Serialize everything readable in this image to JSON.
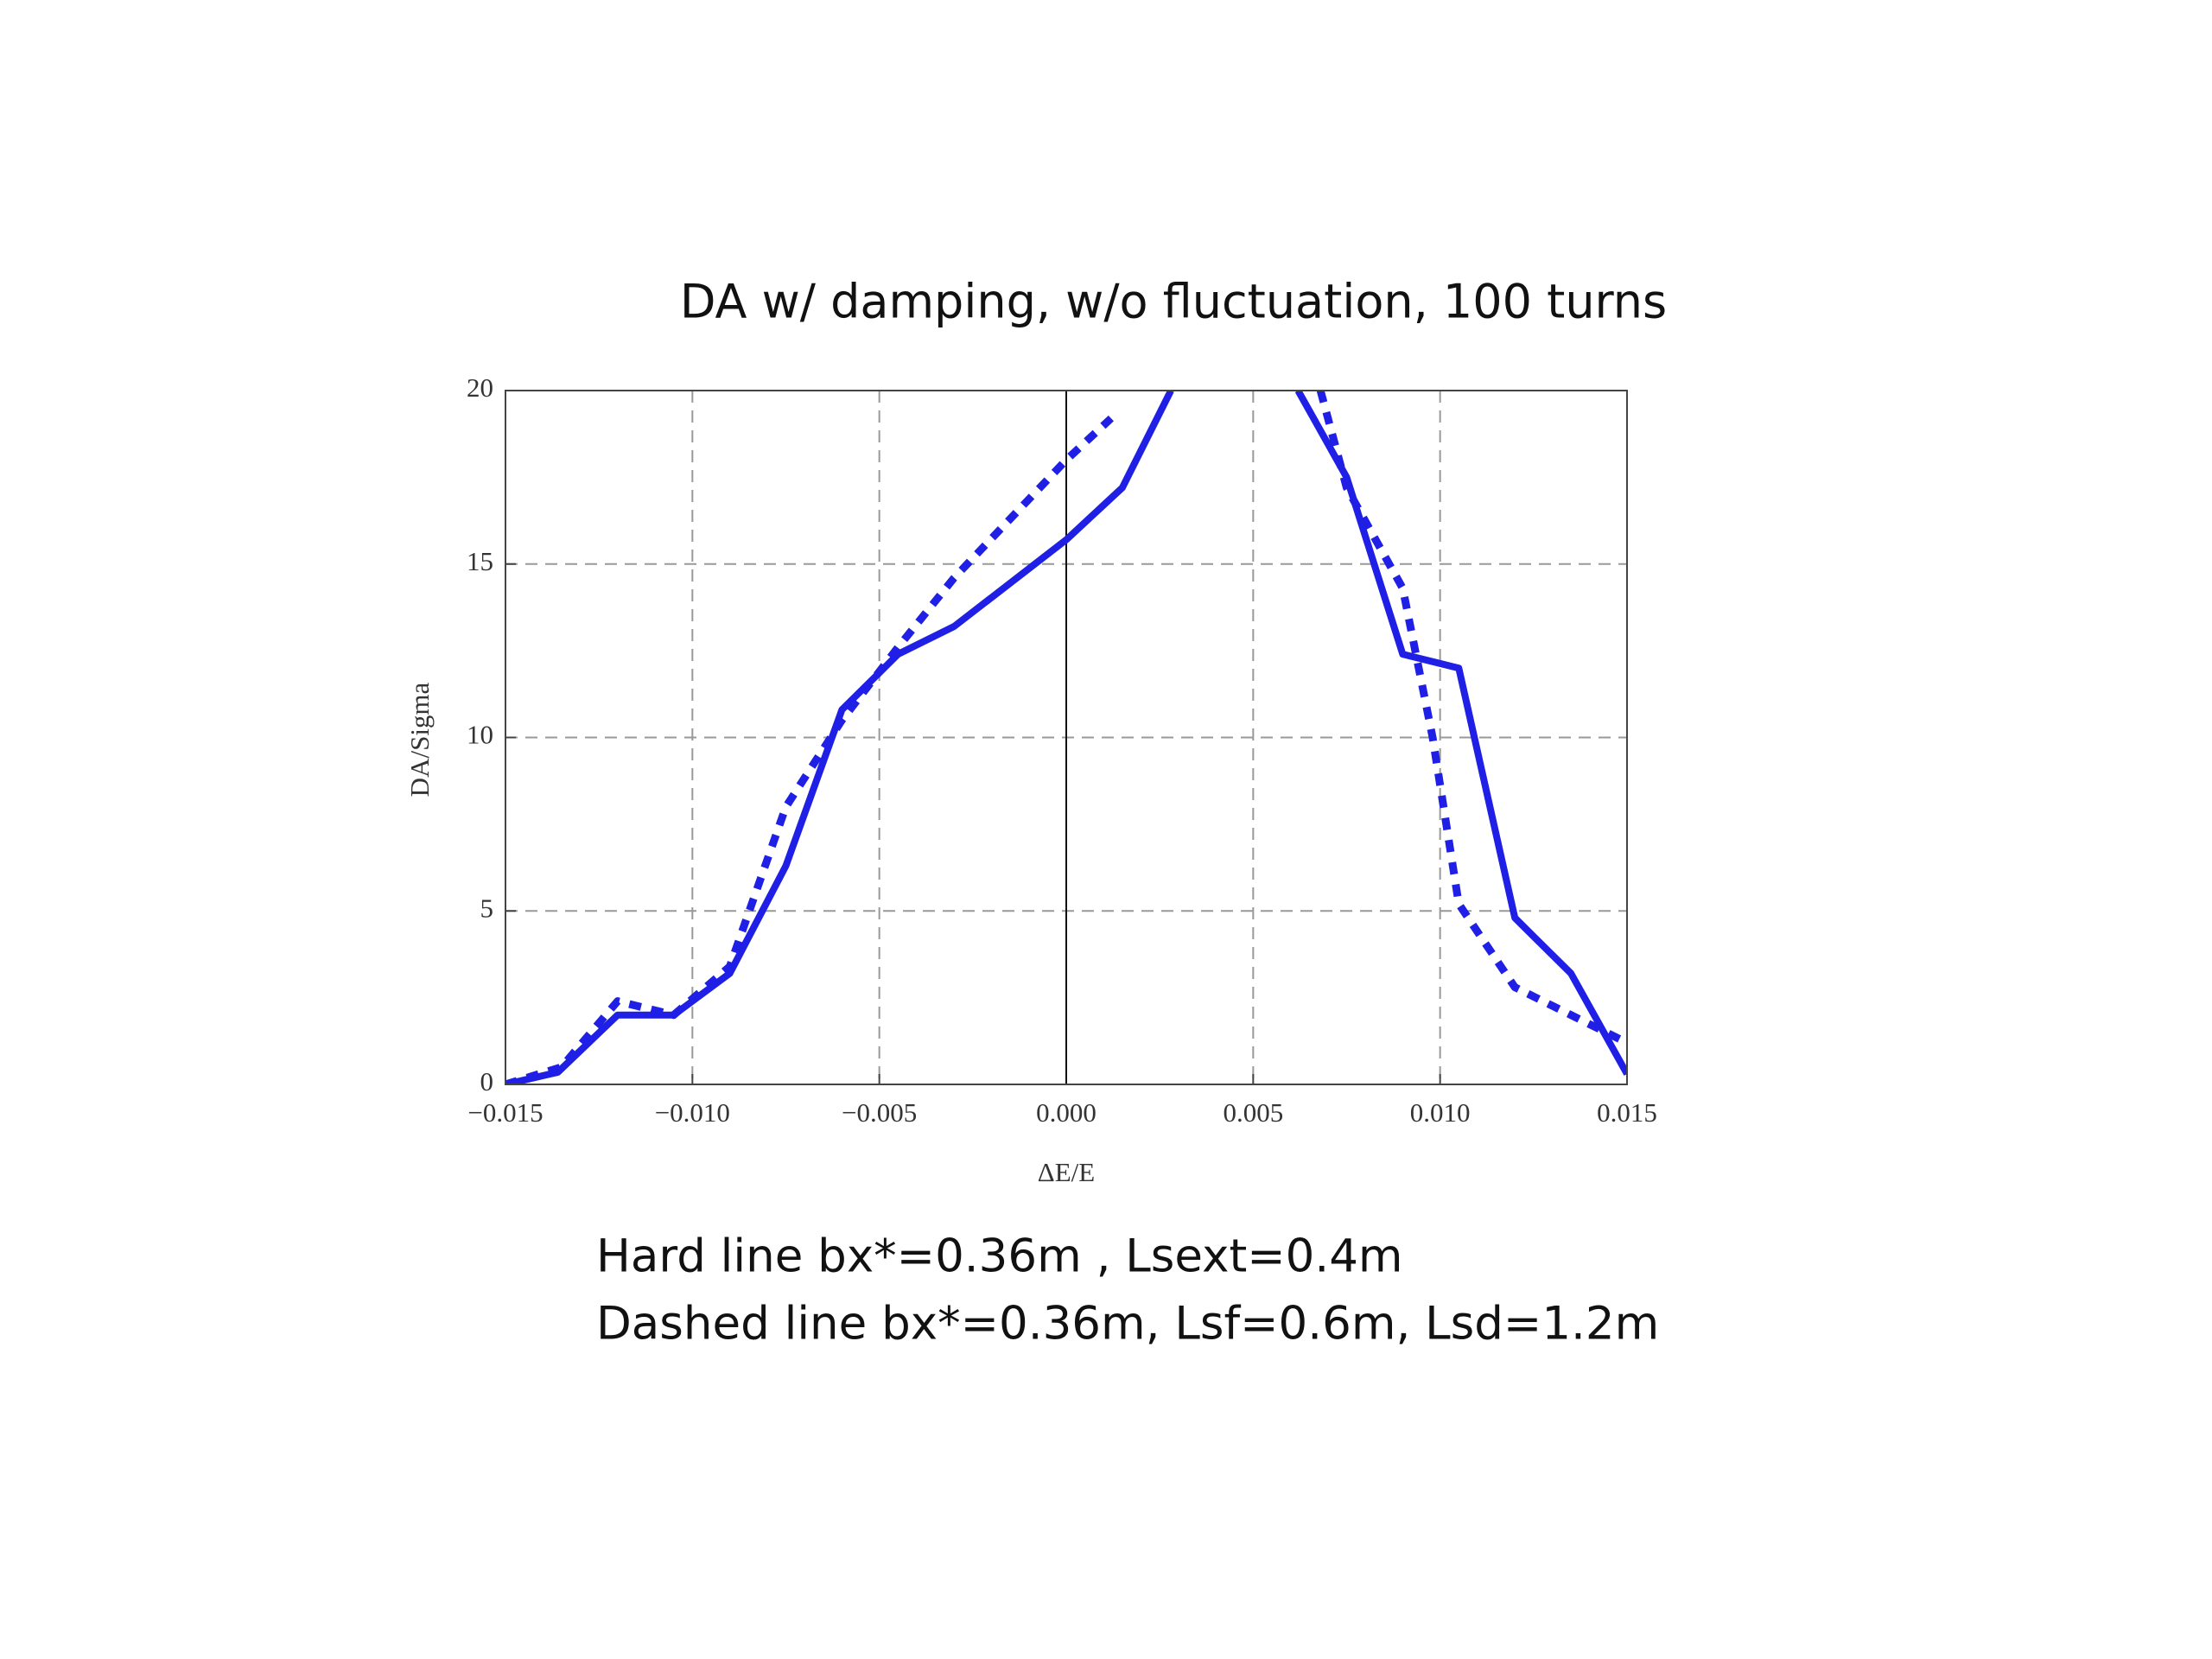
{
  "chart_data": {
    "type": "line",
    "title": "DA w/ damping, w/o fluctuation, 100 turns",
    "x_label": "ΔE/E",
    "y_label": "DA/Sigma",
    "annotations": [
      "Hard line bx*=0.36m , Lsext=0.4m",
      "Dashed line bx*=0.36m, Lsf=0.6m, Lsd=1.2m"
    ],
    "xlim": [
      -0.015,
      0.015
    ],
    "ylim": [
      0,
      20
    ],
    "xticks": [
      {
        "value": -0.015,
        "label": "−0.015"
      },
      {
        "value": -0.01,
        "label": "−0.010"
      },
      {
        "value": -0.005,
        "label": "−0.005"
      },
      {
        "value": 0,
        "label": "0.000"
      },
      {
        "value": 0.005,
        "label": "0.005"
      },
      {
        "value": 0.01,
        "label": "0.010"
      },
      {
        "value": 0.015,
        "label": "0.015"
      }
    ],
    "yticks": [
      0,
      5,
      10,
      15,
      20
    ],
    "grid": true,
    "series": [
      {
        "color": "#1f1fe6",
        "style": "solid",
        "x": [
          -0.015,
          -0.0136,
          -0.012,
          -0.0105,
          -0.009,
          -0.0075,
          -0.006,
          -0.0045,
          -0.003,
          0,
          0.0015,
          0.0028,
          0.0045,
          0.0062,
          0.0075,
          0.009,
          0.0105,
          0.012,
          0.0135,
          0.015
        ],
        "values": [
          0,
          0.35,
          2,
          2,
          3.2,
          6.3,
          10.8,
          12.4,
          13.2,
          15.7,
          17.2,
          20,
          null,
          20,
          17.5,
          12.4,
          12,
          4.8,
          3.2,
          0.3
        ]
      },
      {
        "color": "#1f1fe6",
        "style": "dashed",
        "x": [
          -0.015,
          -0.0135,
          -0.012,
          -0.0105,
          -0.009,
          -0.0075,
          -0.006,
          -0.0045,
          -0.003,
          0,
          0.0012,
          0.0045,
          0.0068,
          0.0075,
          0.009,
          0.0098,
          0.0105,
          0.012,
          0.0135,
          0.015
        ],
        "values": [
          0,
          0.5,
          2.4,
          2,
          3.4,
          8,
          10.5,
          12.6,
          14.6,
          18,
          19.2,
          null,
          20,
          17.2,
          14.3,
          10,
          5.2,
          2.8,
          2,
          1.2
        ]
      }
    ]
  }
}
